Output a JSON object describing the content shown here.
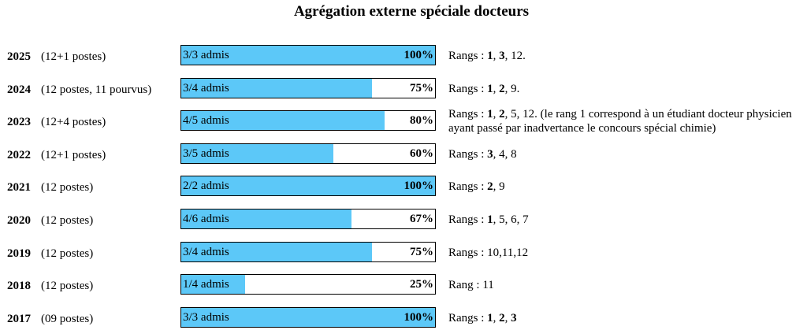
{
  "title": "Agrégation externe spéciale docteurs",
  "chart_data": {
    "type": "bar",
    "title": "Agrégation externe spéciale docteurs",
    "ylim": [
      0,
      100
    ],
    "rows": [
      {
        "year": "2025",
        "posts": "(12+1 postes)",
        "admis": "3/3 admis",
        "percent": 100,
        "percent_label": "100%",
        "ranks_label": "Rangs :",
        "ranks": [
          {
            "v": "1",
            "b": true
          },
          {
            "v": ", ",
            "b": false
          },
          {
            "v": "3",
            "b": true
          },
          {
            "v": ", 12.",
            "b": false
          }
        ]
      },
      {
        "year": "2024",
        "posts": "(12 postes, 11 pourvus)",
        "admis": "3/4 admis",
        "percent": 75,
        "percent_label": "75%",
        "ranks_label": "Rangs :",
        "ranks": [
          {
            "v": "1",
            "b": true
          },
          {
            "v": ", ",
            "b": false
          },
          {
            "v": "2",
            "b": true
          },
          {
            "v": ", 9.",
            "b": false
          }
        ]
      },
      {
        "year": "2023",
        "posts": "(12+4 postes)",
        "admis": "4/5 admis",
        "percent": 80,
        "percent_label": "80%",
        "ranks_label": "Rangs :",
        "ranks": [
          {
            "v": "1",
            "b": true
          },
          {
            "v": ", ",
            "b": false
          },
          {
            "v": "2",
            "b": true
          },
          {
            "v": ", 5, 12. (le rang 1 correspond à un étudiant docteur physicien ayant passé par inadvertance le concours spécial chimie)",
            "b": false
          }
        ]
      },
      {
        "year": "2022",
        "posts": "(12+1 postes)",
        "admis": "3/5 admis",
        "percent": 60,
        "percent_label": "60%",
        "ranks_label": "Rangs :",
        "ranks": [
          {
            "v": "3",
            "b": true
          },
          {
            "v": ", 4, 8",
            "b": false
          }
        ]
      },
      {
        "year": "2021",
        "posts": "(12 postes)",
        "admis": "2/2 admis",
        "percent": 100,
        "percent_label": "100%",
        "ranks_label": "Rangs :",
        "ranks": [
          {
            "v": "2",
            "b": true
          },
          {
            "v": ", 9",
            "b": false
          }
        ]
      },
      {
        "year": "2020",
        "posts": "(12 postes)",
        "admis": "4/6 admis",
        "percent": 67,
        "percent_label": "67%",
        "ranks_label": "Rangs :",
        "ranks": [
          {
            "v": "1",
            "b": true
          },
          {
            "v": ", 5, 6, 7",
            "b": false
          }
        ]
      },
      {
        "year": "2019",
        "posts": "(12 postes)",
        "admis": "3/4 admis",
        "percent": 75,
        "percent_label": "75%",
        "ranks_label": "Rangs :",
        "ranks": [
          {
            "v": "10,11,12",
            "b": false
          }
        ]
      },
      {
        "year": "2018",
        "posts": "(12 postes)",
        "admis": "1/4 admis",
        "percent": 25,
        "percent_label": "25%",
        "ranks_label": "Rang :",
        "ranks": [
          {
            "v": "11",
            "b": false
          }
        ]
      },
      {
        "year": "2017",
        "posts": "(09 postes)",
        "admis": "3/3 admis",
        "percent": 100,
        "percent_label": "100%",
        "ranks_label": "Rangs :",
        "ranks": [
          {
            "v": "1",
            "b": true
          },
          {
            "v": ", ",
            "b": false
          },
          {
            "v": "2",
            "b": true
          },
          {
            "v": ", ",
            "b": false
          },
          {
            "v": "3",
            "b": true
          }
        ]
      }
    ]
  },
  "colors": {
    "bar_fill": "#5cc8f8",
    "bar_border": "#000000",
    "text": "#000000"
  }
}
